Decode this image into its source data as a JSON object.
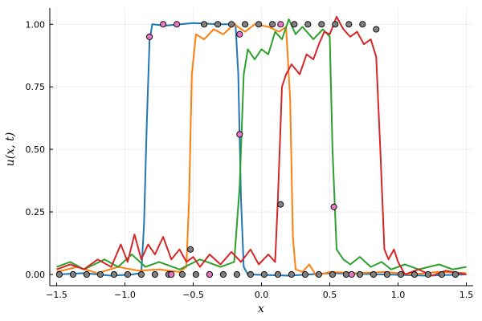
{
  "chart_data": {
    "type": "line",
    "title": "",
    "xlabel": "x",
    "ylabel": "u(x, t)",
    "xlim": [
      -1.55,
      1.55
    ],
    "ylim": [
      -0.045,
      1.065
    ],
    "grid": true,
    "legend": "none",
    "xticks": [
      -1.5,
      -1.0,
      -0.5,
      0.0,
      0.5,
      1.0,
      1.5
    ],
    "xtick_labels": [
      "−1.5",
      "−1.0",
      "−0.5",
      "0.0",
      "0.5",
      "1.0",
      "1.5"
    ],
    "yticks": [
      0.0,
      0.25,
      0.5,
      0.75,
      1.0
    ],
    "ytick_labels": [
      "0.00",
      "0.25",
      "0.50",
      "0.75",
      "1.00"
    ],
    "colors": {
      "blue": "#1f77b4",
      "orange": "#ff7f0e",
      "green": "#2ca02c",
      "red": "#d62728",
      "gray": "#7f7f7f",
      "pink": "#e377c2",
      "purple": "#9467bd"
    },
    "series": [
      {
        "name": "blue",
        "color": "#1f77b4",
        "points": [
          [
            -1.5,
            0.0
          ],
          [
            -1.3,
            0.005
          ],
          [
            -1.1,
            -0.005
          ],
          [
            -0.95,
            0.0
          ],
          [
            -0.88,
            0.005
          ],
          [
            -0.86,
            0.2
          ],
          [
            -0.84,
            0.6
          ],
          [
            -0.82,
            0.93
          ],
          [
            -0.8,
            1.0
          ],
          [
            -0.7,
            0.995
          ],
          [
            -0.5,
            1.005
          ],
          [
            -0.3,
            1.0
          ],
          [
            -0.19,
            1.0
          ],
          [
            -0.17,
            0.8
          ],
          [
            -0.15,
            0.3
          ],
          [
            -0.13,
            0.03
          ],
          [
            -0.1,
            0.0
          ],
          [
            0.2,
            -0.005
          ],
          [
            0.5,
            0.005
          ],
          [
            0.9,
            0.0
          ],
          [
            1.2,
            -0.005
          ],
          [
            1.5,
            0.0
          ]
        ]
      },
      {
        "name": "orange",
        "color": "#ff7f0e",
        "points": [
          [
            -1.5,
            0.01
          ],
          [
            -1.35,
            0.03
          ],
          [
            -1.2,
            0.005
          ],
          [
            -1.05,
            0.03
          ],
          [
            -0.9,
            0.015
          ],
          [
            -0.75,
            0.02
          ],
          [
            -0.6,
            0.01
          ],
          [
            -0.55,
            0.03
          ],
          [
            -0.53,
            0.3
          ],
          [
            -0.51,
            0.8
          ],
          [
            -0.48,
            0.96
          ],
          [
            -0.42,
            0.94
          ],
          [
            -0.35,
            0.98
          ],
          [
            -0.28,
            0.96
          ],
          [
            -0.2,
            1.0
          ],
          [
            -0.12,
            0.97
          ],
          [
            -0.05,
            1.0
          ],
          [
            0.05,
            0.99
          ],
          [
            0.13,
            0.97
          ],
          [
            0.18,
            0.99
          ],
          [
            0.21,
            0.7
          ],
          [
            0.23,
            0.15
          ],
          [
            0.25,
            0.02
          ],
          [
            0.3,
            0.01
          ],
          [
            0.35,
            0.04
          ],
          [
            0.4,
            -0.005
          ],
          [
            0.5,
            0.01
          ],
          [
            0.7,
            0.005
          ],
          [
            0.9,
            0.01
          ],
          [
            1.1,
            0.0
          ],
          [
            1.3,
            0.01
          ],
          [
            1.5,
            0.005
          ]
        ]
      },
      {
        "name": "green",
        "color": "#2ca02c",
        "points": [
          [
            -1.5,
            0.03
          ],
          [
            -1.4,
            0.05
          ],
          [
            -1.3,
            0.02
          ],
          [
            -1.15,
            0.06
          ],
          [
            -1.05,
            0.03
          ],
          [
            -0.95,
            0.08
          ],
          [
            -0.85,
            0.03
          ],
          [
            -0.75,
            0.05
          ],
          [
            -0.6,
            0.02
          ],
          [
            -0.45,
            0.06
          ],
          [
            -0.3,
            0.03
          ],
          [
            -0.2,
            0.05
          ],
          [
            -0.16,
            0.35
          ],
          [
            -0.13,
            0.8
          ],
          [
            -0.1,
            0.9
          ],
          [
            -0.05,
            0.86
          ],
          [
            0.0,
            0.9
          ],
          [
            0.05,
            0.88
          ],
          [
            0.1,
            0.97
          ],
          [
            0.15,
            0.94
          ],
          [
            0.2,
            1.02
          ],
          [
            0.25,
            0.96
          ],
          [
            0.3,
            0.99
          ],
          [
            0.38,
            0.94
          ],
          [
            0.45,
            0.98
          ],
          [
            0.5,
            0.95
          ],
          [
            0.52,
            0.5
          ],
          [
            0.55,
            0.1
          ],
          [
            0.6,
            0.06
          ],
          [
            0.65,
            0.04
          ],
          [
            0.72,
            0.07
          ],
          [
            0.8,
            0.03
          ],
          [
            0.88,
            0.05
          ],
          [
            0.95,
            0.02
          ],
          [
            1.05,
            0.04
          ],
          [
            1.15,
            0.02
          ],
          [
            1.3,
            0.04
          ],
          [
            1.4,
            0.02
          ],
          [
            1.5,
            0.03
          ]
        ]
      },
      {
        "name": "red",
        "color": "#d62728",
        "points": [
          [
            -1.5,
            0.02
          ],
          [
            -1.4,
            0.04
          ],
          [
            -1.3,
            0.02
          ],
          [
            -1.2,
            0.06
          ],
          [
            -1.1,
            0.03
          ],
          [
            -1.03,
            0.12
          ],
          [
            -0.98,
            0.05
          ],
          [
            -0.93,
            0.16
          ],
          [
            -0.88,
            0.06
          ],
          [
            -0.83,
            0.12
          ],
          [
            -0.78,
            0.08
          ],
          [
            -0.72,
            0.15
          ],
          [
            -0.66,
            0.06
          ],
          [
            -0.6,
            0.1
          ],
          [
            -0.55,
            0.05
          ],
          [
            -0.5,
            0.07
          ],
          [
            -0.45,
            0.03
          ],
          [
            -0.38,
            0.08
          ],
          [
            -0.3,
            0.04
          ],
          [
            -0.22,
            0.09
          ],
          [
            -0.15,
            0.05
          ],
          [
            -0.08,
            0.1
          ],
          [
            -0.02,
            0.04
          ],
          [
            0.05,
            0.08
          ],
          [
            0.1,
            0.05
          ],
          [
            0.12,
            0.3
          ],
          [
            0.15,
            0.75
          ],
          [
            0.18,
            0.8
          ],
          [
            0.22,
            0.84
          ],
          [
            0.28,
            0.8
          ],
          [
            0.33,
            0.88
          ],
          [
            0.38,
            0.86
          ],
          [
            0.42,
            0.92
          ],
          [
            0.46,
            0.97
          ],
          [
            0.5,
            0.96
          ],
          [
            0.55,
            1.03
          ],
          [
            0.6,
            0.98
          ],
          [
            0.65,
            0.95
          ],
          [
            0.7,
            0.97
          ],
          [
            0.75,
            0.92
          ],
          [
            0.8,
            0.94
          ],
          [
            0.84,
            0.87
          ],
          [
            0.87,
            0.5
          ],
          [
            0.9,
            0.1
          ],
          [
            0.93,
            0.06
          ],
          [
            0.97,
            0.1
          ],
          [
            1.0,
            0.05
          ],
          [
            1.05,
            0.0
          ],
          [
            1.15,
            0.02
          ],
          [
            1.25,
            -0.005
          ],
          [
            1.35,
            0.015
          ],
          [
            1.5,
            0.0
          ]
        ]
      }
    ],
    "markers": [
      {
        "color": "#808080",
        "points": [
          [
            -1.48,
            0.0
          ],
          [
            -1.38,
            0.0
          ],
          [
            -1.28,
            0.0
          ],
          [
            -1.18,
            0.0
          ],
          [
            -1.08,
            0.0
          ],
          [
            -0.98,
            0.0
          ],
          [
            -0.88,
            0.0
          ],
          [
            -0.78,
            0.0
          ],
          [
            -0.68,
            0.0
          ],
          [
            -0.58,
            0.0
          ],
          [
            -0.48,
            0.0
          ],
          [
            -0.38,
            0.0
          ],
          [
            -0.28,
            0.0
          ],
          [
            -0.18,
            0.0
          ],
          [
            -0.08,
            0.0
          ],
          [
            0.02,
            0.0
          ],
          [
            0.12,
            0.0
          ],
          [
            0.22,
            0.0
          ],
          [
            0.32,
            0.0
          ],
          [
            0.42,
            0.0
          ],
          [
            0.52,
            0.0
          ],
          [
            0.62,
            0.0
          ],
          [
            0.72,
            0.0
          ],
          [
            0.82,
            0.0
          ],
          [
            0.92,
            0.0
          ],
          [
            1.02,
            0.0
          ],
          [
            1.12,
            0.0
          ],
          [
            1.22,
            0.0
          ],
          [
            1.32,
            0.0
          ],
          [
            1.42,
            0.0
          ],
          [
            -0.52,
            0.1
          ],
          [
            0.14,
            0.28
          ],
          [
            -0.42,
            1.0
          ],
          [
            -0.32,
            1.0
          ],
          [
            -0.22,
            1.0
          ],
          [
            -0.12,
            1.0
          ],
          [
            -0.02,
            1.0
          ],
          [
            0.08,
            1.0
          ],
          [
            0.24,
            1.0
          ],
          [
            0.34,
            1.0
          ],
          [
            0.44,
            1.0
          ],
          [
            0.54,
            1.0
          ],
          [
            0.64,
            1.0
          ],
          [
            0.74,
            1.0
          ],
          [
            0.84,
            0.98
          ]
        ]
      },
      {
        "color": "#e377c2",
        "points": [
          [
            -0.82,
            0.95
          ],
          [
            -0.72,
            1.0
          ],
          [
            -0.62,
            1.0
          ],
          [
            -0.16,
            0.96
          ],
          [
            -0.16,
            0.56
          ],
          [
            0.14,
            1.0
          ],
          [
            0.53,
            0.27
          ],
          [
            0.66,
            0.0
          ],
          [
            -0.66,
            0.0
          ],
          [
            -0.38,
            0.0
          ]
        ]
      }
    ]
  }
}
